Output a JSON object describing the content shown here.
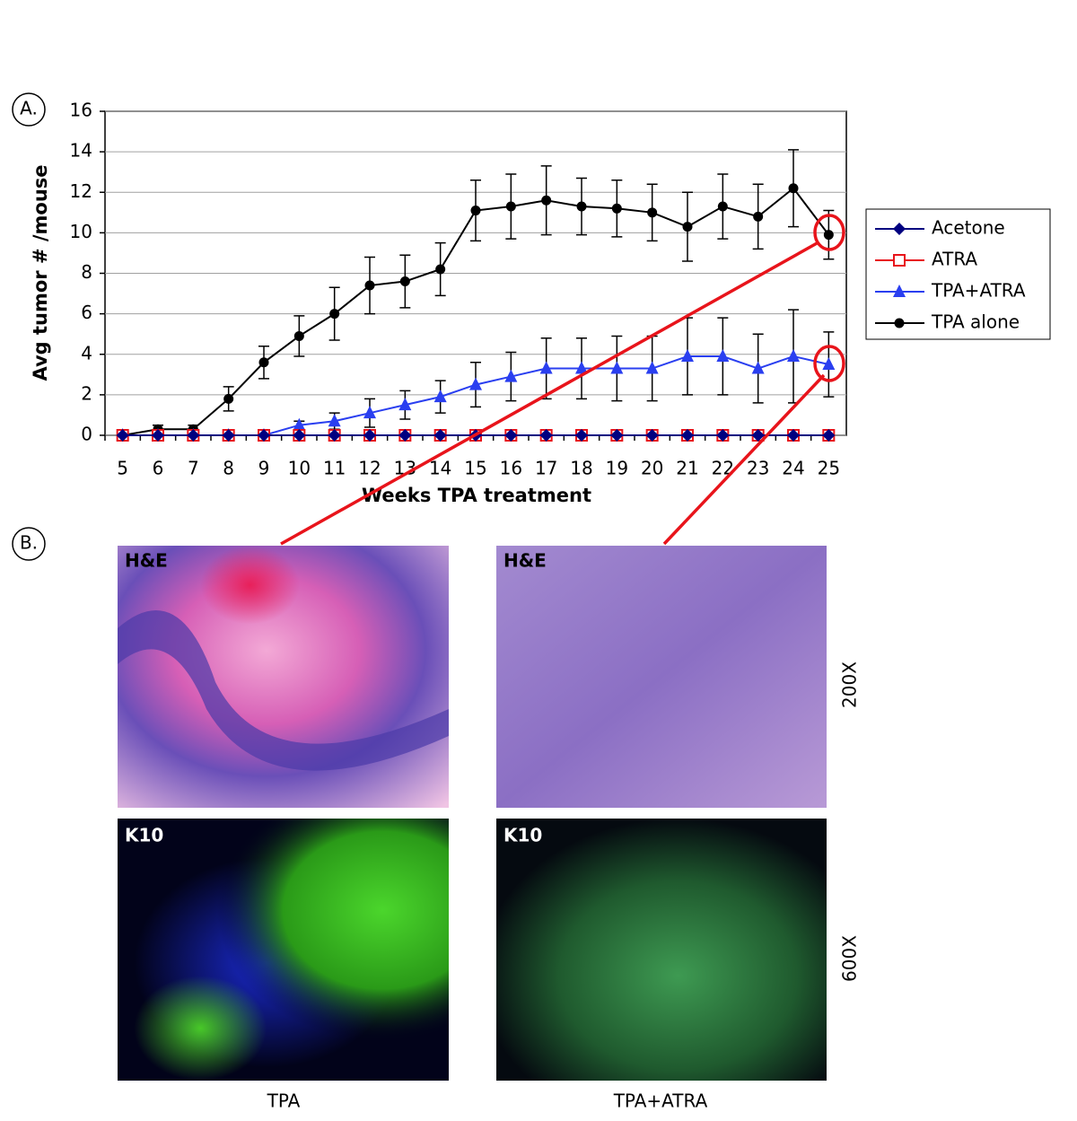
{
  "chart_data": {
    "type": "line",
    "categories": [
      "5",
      "6",
      "7",
      "8",
      "9",
      "10",
      "11",
      "12",
      "13",
      "14",
      "15",
      "16",
      "17",
      "18",
      "19",
      "20",
      "21",
      "22",
      "23",
      "24",
      "25"
    ],
    "xlabel": "Weeks TPA treatment",
    "ylabel": "Avg tumor # /mouse",
    "ylim": [
      0,
      16
    ],
    "yticks": [
      0,
      2,
      4,
      6,
      8,
      10,
      12,
      14,
      16
    ],
    "grid": true,
    "legend": "right",
    "series": [
      {
        "name": "Acetone",
        "color": "#000080",
        "marker": "diamond",
        "values": [
          0,
          0,
          0,
          0,
          0,
          0,
          0,
          0,
          0,
          0,
          0,
          0,
          0,
          0,
          0,
          0,
          0,
          0,
          0,
          0,
          0
        ]
      },
      {
        "name": "ATRA",
        "color": "#e8141b",
        "marker": "open-square",
        "values": [
          0,
          0,
          0,
          0,
          0,
          0,
          0,
          0,
          0,
          0,
          0,
          0,
          0,
          0,
          0,
          0,
          0,
          0,
          0,
          0,
          0
        ]
      },
      {
        "name": "TPA+ATRA",
        "color": "#2a3ff0",
        "marker": "triangle",
        "values": [
          0,
          0,
          0,
          0,
          0,
          0.5,
          0.7,
          1.1,
          1.5,
          1.9,
          2.5,
          2.9,
          3.3,
          3.3,
          3.3,
          3.3,
          3.9,
          3.9,
          3.3,
          3.9,
          3.5
        ],
        "errors": [
          0,
          0,
          0,
          0,
          0,
          0.2,
          0.4,
          0.7,
          0.7,
          0.8,
          1.1,
          1.2,
          1.5,
          1.5,
          1.6,
          1.6,
          1.9,
          1.9,
          1.7,
          2.3,
          1.6
        ]
      },
      {
        "name": "TPA alone",
        "color": "#000000",
        "marker": "circle",
        "values": [
          0,
          0.3,
          0.3,
          1.8,
          3.6,
          4.9,
          6.0,
          7.4,
          7.6,
          8.2,
          11.1,
          11.3,
          11.6,
          11.3,
          11.2,
          11.0,
          10.3,
          11.3,
          10.8,
          12.2,
          9.9
        ],
        "errors": [
          0,
          0.2,
          0.2,
          0.6,
          0.8,
          1.0,
          1.3,
          1.4,
          1.3,
          1.3,
          1.5,
          1.6,
          1.7,
          1.4,
          1.4,
          1.4,
          1.7,
          1.6,
          1.6,
          1.9,
          1.2
        ]
      }
    ]
  },
  "figure": {
    "panel_a": "A.",
    "panel_b": "B.",
    "stain_top_left": "H&E",
    "stain_top_right": "H&E",
    "stain_bottom_left": "K10",
    "stain_bottom_right": "K10",
    "magnification_top": "200X",
    "magnification_bottom": "600X",
    "caption_left": "TPA",
    "caption_right": "TPA+ATRA"
  }
}
